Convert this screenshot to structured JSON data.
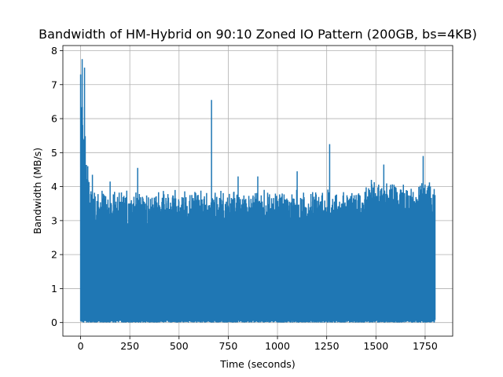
{
  "chart_data": {
    "type": "line",
    "title": "Bandwidth of HM-Hybrid on 90:10 Zoned IO Pattern (200GB, bs=4KB)",
    "xlabel": "Time (seconds)",
    "ylabel": "Bandwidth (MB/s)",
    "xlim": [
      -90,
      1890
    ],
    "ylim": [
      -0.4,
      8.15
    ],
    "xticks": [
      0,
      250,
      500,
      750,
      1000,
      1250,
      1500,
      1750
    ],
    "yticks": [
      0,
      1,
      2,
      3,
      4,
      5,
      6,
      7,
      8
    ],
    "grid": true,
    "line_color": "#1f77b4",
    "x_range": [
      0,
      1800
    ],
    "min_value": 0,
    "peaks": [
      {
        "x": 0,
        "y": 7.3
      },
      {
        "x": 8,
        "y": 7.75
      },
      {
        "x": 20,
        "y": 7.5
      },
      {
        "x": 60,
        "y": 4.35
      },
      {
        "x": 150,
        "y": 4.15
      },
      {
        "x": 290,
        "y": 4.55
      },
      {
        "x": 480,
        "y": 3.9
      },
      {
        "x": 665,
        "y": 6.55
      },
      {
        "x": 800,
        "y": 4.3
      },
      {
        "x": 900,
        "y": 4.3
      },
      {
        "x": 1100,
        "y": 4.45
      },
      {
        "x": 1265,
        "y": 5.25
      },
      {
        "x": 1540,
        "y": 4.65
      },
      {
        "x": 1740,
        "y": 4.9
      },
      {
        "x": 1800,
        "y": 3.6
      }
    ],
    "typical_band": {
      "x_start": 50,
      "x_end": 1800,
      "upper_envelope": [
        3.4,
        4.3
      ]
    }
  }
}
